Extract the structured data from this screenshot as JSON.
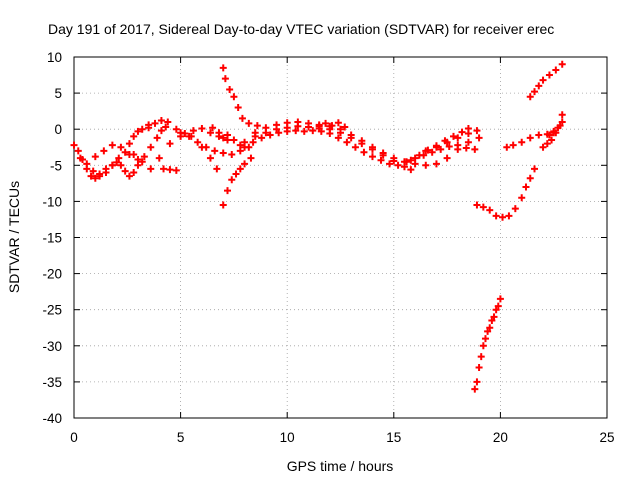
{
  "chart_data": {
    "type": "scatter",
    "title": "Day 191 of 2017, Sidereal Day-to-day VTEC variation (SDTVAR) for receiver erec",
    "xlabel": "GPS time / hours",
    "ylabel": "SDTVAR / TECUs",
    "xlim": [
      0,
      25
    ],
    "ylim": [
      -40,
      10
    ],
    "xticks": [
      0,
      5,
      10,
      15,
      20,
      25
    ],
    "yticks": [
      10,
      5,
      0,
      -5,
      -10,
      -15,
      -20,
      -25,
      -30,
      -35,
      -40
    ],
    "grid": true,
    "legend": "none",
    "marker": "plus",
    "color": "#ff0000",
    "series": [
      {
        "tracks": [
          [
            [
              0.0,
              -2.2
            ],
            [
              0.2,
              -3.0
            ],
            [
              0.4,
              -4.2
            ],
            [
              0.6,
              -5.5
            ],
            [
              0.8,
              -6.5
            ],
            [
              1.0,
              -6.8
            ],
            [
              1.2,
              -6.2
            ],
            [
              1.5,
              -5.5
            ],
            [
              1.8,
              -5.0
            ],
            [
              2.0,
              -4.6
            ],
            [
              2.2,
              -5.0
            ],
            [
              2.4,
              -5.8
            ],
            [
              2.6,
              -6.5
            ],
            [
              2.8,
              -6.0
            ],
            [
              3.0,
              -5.0
            ]
          ],
          [
            [
              0.3,
              -4.0
            ],
            [
              0.6,
              -4.8
            ],
            [
              0.9,
              -5.8
            ],
            [
              1.2,
              -6.5
            ],
            [
              1.5,
              -6.0
            ],
            [
              1.8,
              -5.0
            ],
            [
              2.1,
              -4.0
            ],
            [
              2.4,
              -3.2
            ],
            [
              2.6,
              -2.0
            ],
            [
              2.8,
              -1.0
            ],
            [
              3.0,
              -0.3
            ],
            [
              3.2,
              0.0
            ],
            [
              3.5,
              0.2
            ]
          ],
          [
            [
              1.0,
              -3.8
            ],
            [
              1.4,
              -3.0
            ],
            [
              1.8,
              -2.2
            ],
            [
              2.2,
              -2.5
            ],
            [
              2.6,
              -3.5
            ],
            [
              3.0,
              -4.2
            ],
            [
              3.3,
              -3.8
            ],
            [
              3.6,
              -2.5
            ],
            [
              3.9,
              -1.2
            ],
            [
              4.1,
              -0.2
            ],
            [
              4.3,
              0.3
            ]
          ],
          [
            [
              3.5,
              0.6
            ],
            [
              3.8,
              0.8
            ],
            [
              4.1,
              1.2
            ],
            [
              4.4,
              1.0
            ]
          ],
          [
            [
              2.8,
              -3.5
            ],
            [
              3.2,
              -4.5
            ],
            [
              3.6,
              -5.5
            ],
            [
              4.0,
              -4.0
            ],
            [
              4.5,
              -2.0
            ],
            [
              5.0,
              -1.0
            ]
          ],
          [
            [
              4.2,
              -5.5
            ],
            [
              4.5,
              -5.6
            ],
            [
              4.8,
              -5.7
            ]
          ],
          [
            [
              4.8,
              0.0
            ],
            [
              5.2,
              -0.6
            ],
            [
              5.6,
              -0.2
            ],
            [
              6.0,
              0.1
            ],
            [
              6.4,
              -0.5
            ],
            [
              6.8,
              -1.0
            ],
            [
              7.2,
              -1.5
            ]
          ],
          [
            [
              5.0,
              -0.5
            ],
            [
              5.4,
              -1.0
            ],
            [
              5.8,
              -1.8
            ],
            [
              6.2,
              -2.5
            ],
            [
              6.6,
              -3.0
            ],
            [
              7.0,
              -3.3
            ],
            [
              7.4,
              -3.5
            ],
            [
              7.8,
              -3.0
            ],
            [
              8.2,
              -2.5
            ]
          ],
          [
            [
              5.5,
              -1.0
            ],
            [
              6.0,
              -2.5
            ],
            [
              6.4,
              -4.0
            ],
            [
              6.7,
              -5.5
            ]
          ],
          [
            [
              6.5,
              0.2
            ],
            [
              6.8,
              -0.5
            ],
            [
              7.0,
              -1.2
            ],
            [
              7.2,
              -0.8
            ],
            [
              7.5,
              -1.5
            ],
            [
              7.8,
              -2.2
            ]
          ],
          [
            [
              7.0,
              8.5
            ],
            [
              7.1,
              7.0
            ],
            [
              7.3,
              5.5
            ],
            [
              7.5,
              4.5
            ],
            [
              7.7,
              3.0
            ],
            [
              7.9,
              1.5
            ],
            [
              8.2,
              0.8
            ],
            [
              8.6,
              0.5
            ]
          ],
          [
            [
              7.0,
              -10.5
            ],
            [
              7.2,
              -8.5
            ],
            [
              7.4,
              -7.0
            ],
            [
              7.6,
              -6.2
            ],
            [
              7.8,
              -5.5
            ],
            [
              8.0,
              -4.8
            ],
            [
              8.3,
              -4.0
            ]
          ],
          [
            [
              8.0,
              -2.5
            ],
            [
              8.4,
              -1.8
            ],
            [
              8.8,
              -1.2
            ],
            [
              9.2,
              -0.8
            ],
            [
              9.6,
              -0.5
            ],
            [
              10.0,
              -0.3
            ],
            [
              10.4,
              -0.2
            ],
            [
              10.8,
              -0.3
            ],
            [
              11.2,
              -0.2
            ],
            [
              11.6,
              -0.3
            ],
            [
              12.0,
              -0.6
            ],
            [
              12.4,
              -1.2
            ],
            [
              12.8,
              -1.8
            ],
            [
              13.2,
              -2.5
            ],
            [
              13.6,
              -3.2
            ],
            [
              14.0,
              -3.8
            ],
            [
              14.4,
              -4.3
            ],
            [
              14.8,
              -4.8
            ],
            [
              15.2,
              -5.0
            ],
            [
              15.6,
              -4.5
            ],
            [
              16.0,
              -4.0
            ],
            [
              16.4,
              -3.6
            ],
            [
              16.8,
              -3.2
            ],
            [
              17.2,
              -2.8
            ],
            [
              17.6,
              -2.4
            ],
            [
              18.0,
              -2.2
            ],
            [
              18.4,
              -2.6
            ],
            [
              18.8,
              -2.8
            ]
          ],
          [
            [
              8.0,
              -1.8
            ],
            [
              8.5,
              -1.0
            ],
            [
              9.0,
              -0.5
            ],
            [
              9.5,
              0.0
            ],
            [
              10.0,
              0.2
            ],
            [
              10.5,
              0.4
            ],
            [
              11.0,
              0.3
            ],
            [
              11.5,
              0.1
            ],
            [
              12.0,
              0.0
            ],
            [
              12.5,
              -0.5
            ],
            [
              13.0,
              -1.2
            ],
            [
              13.5,
              -2.0
            ],
            [
              14.0,
              -2.8
            ],
            [
              14.5,
              -3.6
            ],
            [
              15.0,
              -4.4
            ],
            [
              15.5,
              -5.2
            ],
            [
              15.8,
              -5.6
            ]
          ],
          [
            [
              8.5,
              -0.5
            ],
            [
              9.0,
              0.2
            ],
            [
              9.5,
              0.6
            ],
            [
              10.0,
              0.9
            ],
            [
              10.5,
              1.0
            ],
            [
              11.0,
              0.8
            ],
            [
              11.5,
              0.6
            ],
            [
              12.0,
              0.4
            ],
            [
              12.5,
              0.0
            ],
            [
              13.0,
              -0.8
            ],
            [
              13.5,
              -1.6
            ],
            [
              14.0,
              -2.5
            ],
            [
              14.5,
              -3.3
            ],
            [
              15.0,
              -4.0
            ],
            [
              15.5,
              -4.5
            ],
            [
              16.0,
              -4.8
            ],
            [
              16.5,
              -5.0
            ],
            [
              17.0,
              -4.8
            ],
            [
              17.5,
              -4.0
            ],
            [
              18.0,
              -2.8
            ],
            [
              18.5,
              -1.8
            ],
            [
              19.0,
              -1.2
            ]
          ],
          [
            [
              11.5,
              0.4
            ],
            [
              11.8,
              0.8
            ],
            [
              12.1,
              0.5
            ],
            [
              12.4,
              0.9
            ],
            [
              12.7,
              0.3
            ]
          ],
          [
            [
              15.8,
              -4.3
            ],
            [
              16.2,
              -3.6
            ],
            [
              16.6,
              -2.9
            ],
            [
              17.0,
              -2.3
            ],
            [
              17.4,
              -1.6
            ],
            [
              17.8,
              -1.0
            ],
            [
              18.2,
              -0.4
            ],
            [
              18.5,
              0.1
            ]
          ],
          [
            [
              16.5,
              -3.0
            ],
            [
              17.0,
              -2.5
            ],
            [
              17.5,
              -1.8
            ],
            [
              18.0,
              -1.2
            ],
            [
              18.5,
              -0.6
            ],
            [
              18.9,
              -0.2
            ]
          ],
          [
            [
              18.9,
              -10.5
            ],
            [
              19.2,
              -10.8
            ],
            [
              19.5,
              -11.2
            ],
            [
              19.8,
              -12.0
            ],
            [
              20.1,
              -12.2
            ],
            [
              20.4,
              -12.0
            ],
            [
              20.7,
              -11.0
            ],
            [
              21.0,
              -9.5
            ],
            [
              21.2,
              -8.0
            ],
            [
              21.4,
              -6.8
            ],
            [
              21.6,
              -5.5
            ]
          ],
          [
            [
              18.8,
              -36.0
            ],
            [
              18.9,
              -35.0
            ],
            [
              19.0,
              -33.0
            ],
            [
              19.1,
              -31.5
            ],
            [
              19.2,
              -30.0
            ],
            [
              19.3,
              -29.0
            ],
            [
              19.4,
              -28.0
            ],
            [
              19.5,
              -27.5
            ],
            [
              19.6,
              -26.5
            ],
            [
              19.7,
              -26.0
            ],
            [
              19.8,
              -25.0
            ],
            [
              19.9,
              -24.5
            ],
            [
              20.0,
              -23.5
            ]
          ],
          [
            [
              20.3,
              -2.5
            ],
            [
              20.6,
              -2.2
            ],
            [
              21.0,
              -1.8
            ],
            [
              21.4,
              -1.2
            ],
            [
              21.8,
              -0.8
            ],
            [
              22.2,
              -0.7
            ],
            [
              22.5,
              -0.5
            ]
          ],
          [
            [
              21.4,
              4.5
            ],
            [
              21.6,
              5.2
            ],
            [
              21.8,
              6.0
            ],
            [
              22.0,
              6.8
            ],
            [
              22.3,
              7.5
            ],
            [
              22.6,
              8.2
            ],
            [
              22.9,
              9.0
            ]
          ],
          [
            [
              22.0,
              -2.5
            ],
            [
              22.2,
              -2.0
            ],
            [
              22.4,
              -1.5
            ],
            [
              22.6,
              -0.5
            ],
            [
              22.8,
              0.5
            ],
            [
              22.9,
              2.0
            ]
          ],
          [
            [
              22.3,
              -0.8
            ],
            [
              22.5,
              -0.3
            ],
            [
              22.7,
              0.2
            ],
            [
              22.9,
              1.0
            ]
          ]
        ]
      }
    ]
  }
}
